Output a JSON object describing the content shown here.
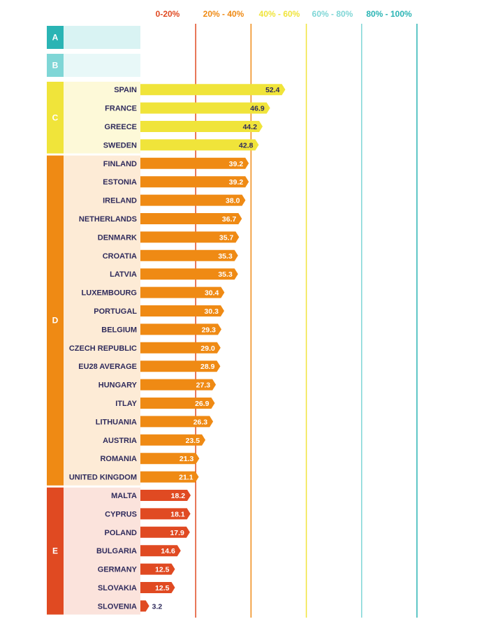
{
  "chart_data": {
    "type": "bar",
    "orientation": "horizontal",
    "legend": [
      {
        "label": "0-20%",
        "color": "#e04a22"
      },
      {
        "label": "20% - 40%",
        "color": "#ef8a14"
      },
      {
        "label": "40% - 60%",
        "color": "#f0e43a"
      },
      {
        "label": "60% - 80%",
        "color": "#7fd6d6"
      },
      {
        "label": "80% - 100%",
        "color": "#2ab4b4"
      }
    ],
    "xlim": [
      0,
      100
    ],
    "grades": [
      {
        "letter": "A",
        "color": "#2ab4b4",
        "bg": "#d9f3f3"
      },
      {
        "letter": "B",
        "color": "#7fd6d6",
        "bg": "#e8f8f8"
      },
      {
        "letter": "C",
        "color": "#f0e43a",
        "bg": "#fdf9d8"
      },
      {
        "letter": "D",
        "color": "#ef8a14",
        "bg": "#fdebd6"
      },
      {
        "letter": "E",
        "color": "#e04a22",
        "bg": "#fbe3dc"
      }
    ],
    "categories": [
      "SPAIN",
      "FRANCE",
      "GREECE",
      "SWEDEN",
      "FINLAND",
      "ESTONIA",
      "IRELAND",
      "NETHERLANDS",
      "DENMARK",
      "CROATIA",
      "LATVIA",
      "LUXEMBOURG",
      "PORTUGAL",
      "BELGIUM",
      "CZECH REPUBLIC",
      "EU28 AVERAGE",
      "HUNGARY",
      "ITLAY",
      "LITHUANIA",
      "AUSTRIA",
      "ROMANIA",
      "UNITED KINGDOM",
      "MALTA",
      "CYPRUS",
      "POLAND",
      "BULGARIA",
      "GERMANY",
      "SLOVAKIA",
      "SLOVENIA"
    ],
    "values": [
      52.4,
      46.9,
      44.2,
      42.8,
      39.2,
      39.2,
      38.0,
      36.7,
      35.7,
      35.3,
      35.3,
      30.4,
      30.3,
      29.3,
      29.0,
      28.9,
      27.3,
      26.9,
      26.3,
      23.5,
      21.3,
      21.1,
      18.2,
      18.1,
      17.9,
      14.6,
      12.5,
      12.5,
      3.2
    ],
    "value_labels": [
      "52.4",
      "46.9",
      "44.2",
      "42.8",
      "39.2",
      "39.2",
      "38.0",
      "36.7",
      "35.7",
      "35.3",
      "35.3",
      "30.4",
      "30.3",
      "29.3",
      "29.0",
      "28.9",
      "27.3",
      "26.9",
      "26.3",
      "23.5",
      "21.3",
      "21.1",
      "18.2",
      "18.1",
      "17.9",
      "14.6",
      "12.5",
      "12.5",
      "3.2"
    ],
    "grade": [
      "C",
      "C",
      "C",
      "C",
      "D",
      "D",
      "D",
      "D",
      "D",
      "D",
      "D",
      "D",
      "D",
      "D",
      "D",
      "D",
      "D",
      "D",
      "D",
      "D",
      "D",
      "D",
      "E",
      "E",
      "E",
      "E",
      "E",
      "E",
      "E"
    ]
  }
}
